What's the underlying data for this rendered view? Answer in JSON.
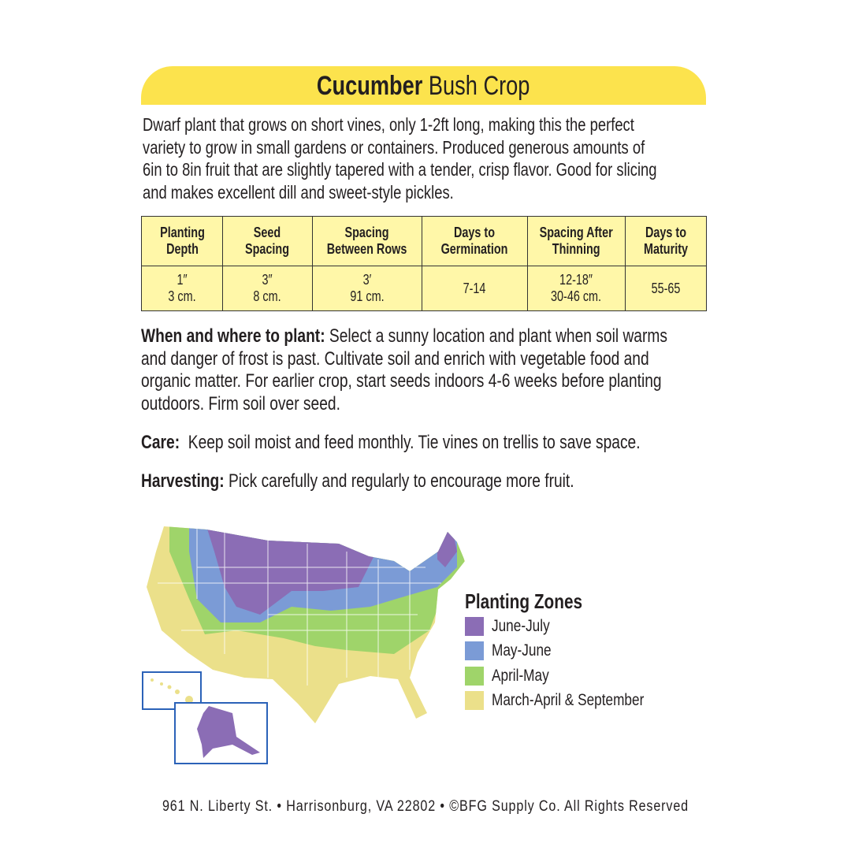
{
  "title": {
    "bold": "Cucumber",
    "rest": "Bush Crop"
  },
  "description": [
    "Dwarf plant that grows on short vines, only 1-2ft long, making this the perfect",
    "variety to grow in small gardens or containers. Produced generous amounts of",
    "6in to 8in fruit that are slightly tapered with a tender, crisp flavor. Good for slicing",
    "and makes excellent dill and sweet-style pickles."
  ],
  "table": {
    "headers": [
      [
        "Planting",
        "Depth"
      ],
      [
        "Seed",
        "Spacing"
      ],
      [
        "Spacing",
        "Between Rows"
      ],
      [
        "Days to",
        "Germination"
      ],
      [
        "Spacing After",
        "Thinning"
      ],
      [
        "Days to",
        "Maturity"
      ]
    ],
    "values": [
      [
        "1″",
        "3 cm."
      ],
      [
        "3″",
        "8 cm."
      ],
      [
        "3′",
        "91 cm."
      ],
      [
        "7-14",
        ""
      ],
      [
        "12-18″",
        "30-46 cm."
      ],
      [
        "55-65",
        ""
      ]
    ]
  },
  "sections": {
    "when": {
      "label": "When and where to plant:",
      "lines": [
        " Select a sunny location and plant when soil warms",
        "and danger of frost is past. Cultivate soil and enrich with vegetable food and",
        "organic matter. For earlier crop, start seeds indoors 4-6 weeks before planting",
        "outdoors. Firm soil over seed."
      ]
    },
    "care": {
      "label": "Care:",
      "text": "  Keep soil moist and feed monthly. Tie vines on trellis to save space."
    },
    "harvest": {
      "label": "Harvesting:",
      "text": " Pick carefully and regularly to encourage more fruit."
    }
  },
  "legend": {
    "title": "Planting Zones",
    "items": [
      {
        "label": "June-July",
        "color": "#8b6db5"
      },
      {
        "label": "May-June",
        "color": "#7b9bd6"
      },
      {
        "label": "April-May",
        "color": "#9fd46a"
      },
      {
        "label": "March-April & September",
        "color": "#ebe08a"
      }
    ]
  },
  "footer": "961 N. Liberty St. • Harrisonburg, VA 22802 • ©BFG Supply Co. All Rights Reserved"
}
